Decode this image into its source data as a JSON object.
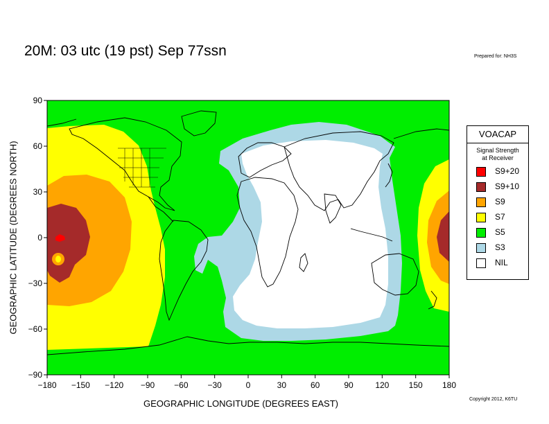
{
  "header": {
    "title": "20M:  03 utc (19 pst) Sep 77ssn",
    "prepared_for": "Prepared for: NH3S"
  },
  "footer": {
    "copyright": "Copyright 2012, K6TU"
  },
  "axes": {
    "x_label": "GEOGRAPHIC LONGITUDE (DEGREES EAST)",
    "y_label": "GEOGRAPHIC LATITUDE (DEGREES NORTH)",
    "x_ticks": [
      "−180",
      "−150",
      "−120",
      "−90",
      "−60",
      "−30",
      "0",
      "30",
      "60",
      "90",
      "120",
      "150",
      "180"
    ],
    "y_ticks": [
      "90",
      "60",
      "30",
      "0",
      "−30",
      "−60",
      "−90"
    ],
    "x_range": [
      -180,
      180
    ],
    "y_range": [
      -90,
      90
    ]
  },
  "legend": {
    "title": "VOACAP",
    "subtitle_line1": "Signal Strength",
    "subtitle_line2": "at Receiver",
    "items": [
      {
        "label": "S9+20",
        "color": "#ff0000"
      },
      {
        "label": "S9+10",
        "color": "#a52a2a"
      },
      {
        "label": "S9",
        "color": "#ffa500"
      },
      {
        "label": "S7",
        "color": "#ffff00"
      },
      {
        "label": "S5",
        "color": "#00ee00"
      },
      {
        "label": "S3",
        "color": "#add8e6"
      },
      {
        "label": "NIL",
        "color": "#ffffff"
      }
    ]
  },
  "map": {
    "projection": "equirectangular",
    "background_level": "S5",
    "boundary_lines": "black"
  }
}
